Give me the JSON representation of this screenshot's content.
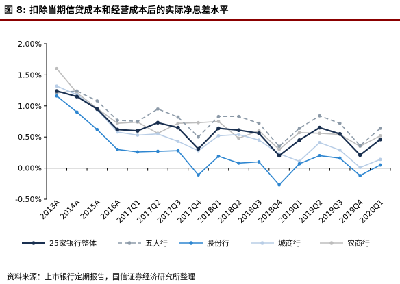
{
  "figure": {
    "title": "图 8:  扣除当期信贷成本和经营成本后的实际净息差水平",
    "source": "资料来源：上市银行定期报告，国信证券经济研究所整理"
  },
  "chart_data": {
    "type": "line",
    "categories": [
      "2013A",
      "2014A",
      "2015A",
      "2016A",
      "2017Q1",
      "2017Q2",
      "2017Q3",
      "2017Q4",
      "2018Q1",
      "2018Q2",
      "2018Q3",
      "2018Q4",
      "2019Q1",
      "2019Q2",
      "2019Q3",
      "2019Q4",
      "2020Q1"
    ],
    "ylim": [
      -0.5,
      2.0
    ],
    "yticks": [
      -0.5,
      0.0,
      0.5,
      1.0,
      1.5,
      2.0
    ],
    "ytick_labels": [
      "-0.50%",
      "0.00%",
      "0.50%",
      "1.00%",
      "1.50%",
      "2.00%"
    ],
    "grid": false,
    "legend_position": "bottom",
    "series": [
      {
        "name": "25家银行整体",
        "color": "#1a3050",
        "style": "solid",
        "width": 2.2,
        "values": [
          1.24,
          1.15,
          0.95,
          0.62,
          0.6,
          0.73,
          0.65,
          0.31,
          0.64,
          0.61,
          0.56,
          0.2,
          0.45,
          0.65,
          0.55,
          0.21,
          0.46
        ]
      },
      {
        "name": "五大行",
        "color": "#8c9aa8",
        "style": "dashed",
        "width": 1.6,
        "values": [
          1.21,
          1.24,
          1.08,
          0.77,
          0.75,
          0.95,
          0.82,
          0.5,
          0.83,
          0.83,
          0.72,
          0.35,
          0.64,
          0.84,
          0.72,
          0.36,
          0.64
        ]
      },
      {
        "name": "股份行",
        "color": "#2e86d0",
        "style": "solid",
        "width": 1.6,
        "values": [
          1.16,
          0.9,
          0.62,
          0.3,
          0.26,
          0.27,
          0.28,
          -0.11,
          0.19,
          0.08,
          0.1,
          -0.27,
          0.07,
          0.2,
          0.16,
          -0.12,
          0.05
        ]
      },
      {
        "name": "城商行",
        "color": "#b8cde6",
        "style": "solid",
        "width": 1.6,
        "values": [
          1.32,
          1.18,
          0.94,
          0.58,
          0.53,
          0.55,
          0.43,
          0.28,
          0.52,
          0.54,
          0.45,
          0.23,
          0.11,
          0.41,
          0.29,
          0.01,
          0.14
        ]
      },
      {
        "name": "农商行",
        "color": "#bdbdbd",
        "style": "solid",
        "width": 1.6,
        "values": [
          1.6,
          1.21,
          0.96,
          0.72,
          0.74,
          0.56,
          0.72,
          0.73,
          0.75,
          0.48,
          0.6,
          0.3,
          0.57,
          0.56,
          0.54,
          0.35,
          0.52
        ]
      }
    ]
  }
}
